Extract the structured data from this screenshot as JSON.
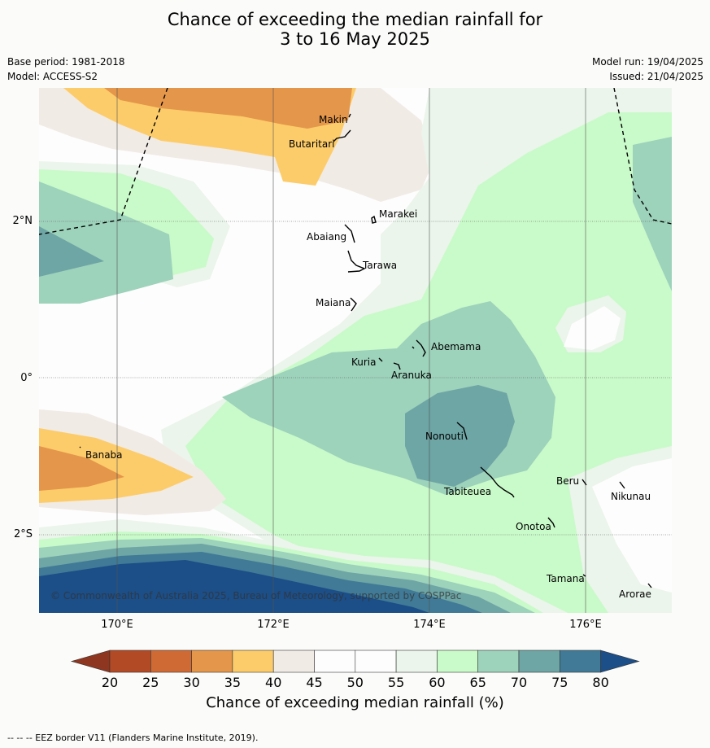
{
  "title_line1": "Chance of exceeding the median rainfall for",
  "title_line2": "3 to 16 May 2025",
  "base_period": "Base period: 1981-2018",
  "model": "Model: ACCESS-S2",
  "model_run": "Model run: 19/04/2025",
  "issued": "Issued: 21/04/2025",
  "lat_ticks": [
    "2°N",
    "0°",
    "2°S"
  ],
  "lon_ticks": [
    "170°E",
    "172°E",
    "174°E",
    "176°E"
  ],
  "places": [
    "Makin",
    "Butaritari",
    "Marakei",
    "Abaiang",
    "Tarawa",
    "Maiana",
    "Abemama",
    "Kuria",
    "Aranuka",
    "Nonouti",
    "Banaba",
    "Beru",
    "Nikunau",
    "Tabiteuea",
    "Onotoa",
    "Tamana",
    "Arorae"
  ],
  "copyright": "© Commonwealth of Australia 2025, Bureau of Meteorology, supported by COSPPac",
  "colorbar": {
    "ticks": [
      "20",
      "25",
      "30",
      "35",
      "40",
      "45",
      "50",
      "55",
      "60",
      "65",
      "70",
      "75",
      "80"
    ],
    "colors": [
      "#b24a25",
      "#cf6a35",
      "#e4964a",
      "#fdcc6a",
      "#f1ebe6",
      "#fdfdfd",
      "#fdfdfd",
      "#ebf5eb",
      "#c9fac9",
      "#9dd2bb",
      "#6ea5a5",
      "#407a96"
    ],
    "under_color": "#8e3620",
    "over_color": "#1c4e87",
    "label": "Chance of exceeding median rainfall (%)"
  },
  "footer": "--  --  -- EEZ border V11 (Flanders Marine Institute, 2019)."
}
